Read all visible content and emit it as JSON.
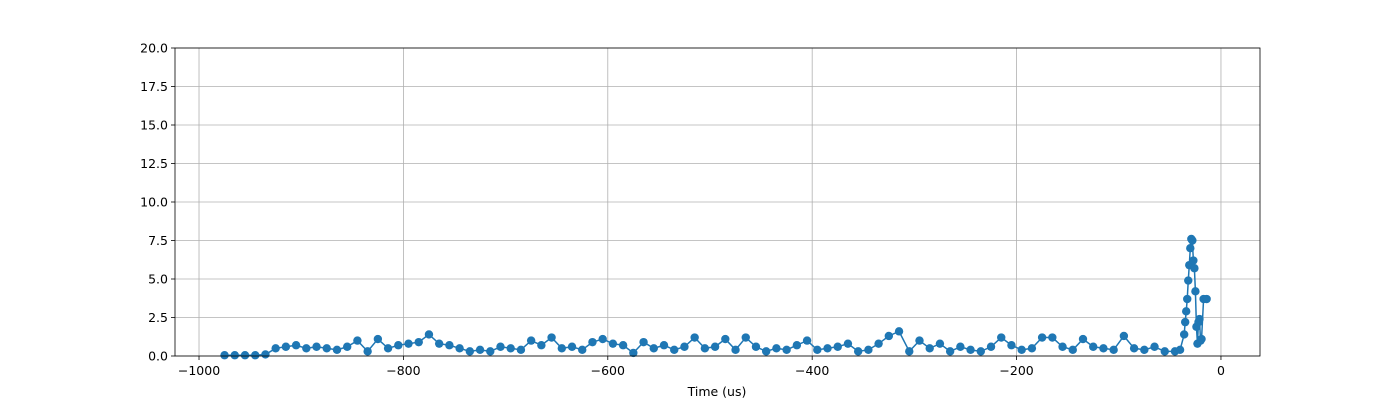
{
  "chart_data": {
    "type": "line",
    "xlabel": "Time (us)",
    "x": [
      -975,
      -965,
      -955,
      -945,
      -935,
      -925,
      -915,
      -905,
      -895,
      -885,
      -875,
      -865,
      -855,
      -845,
      -835,
      -825,
      -815,
      -805,
      -795,
      -785,
      -775,
      -765,
      -755,
      -745,
      -735,
      -725,
      -715,
      -705,
      -695,
      -685,
      -675,
      -665,
      -655,
      -645,
      -635,
      -625,
      -615,
      -605,
      -595,
      -585,
      -575,
      -565,
      -555,
      -545,
      -535,
      -525,
      -515,
      -505,
      -495,
      -485,
      -475,
      -465,
      -455,
      -445,
      -435,
      -425,
      -415,
      -405,
      -395,
      -385,
      -375,
      -365,
      -355,
      -345,
      -335,
      -325,
      -315,
      -305,
      -295,
      -285,
      -275,
      -265,
      -255,
      -245,
      -235,
      -225,
      -215,
      -205,
      -195,
      -185,
      -175,
      -165,
      -155,
      -145,
      -135,
      -125,
      -115,
      -105,
      -95,
      -85,
      -75,
      -65,
      -55,
      -45,
      -40,
      -36,
      -35,
      -34,
      -33,
      -32,
      -31,
      -30,
      -29,
      -28,
      -27,
      -26,
      -25,
      -24,
      -23,
      -22,
      -21,
      -20,
      -19,
      -17,
      -14
    ],
    "series": [
      {
        "color": "#1f77b4",
        "values": [
          0.05,
          0.05,
          0.05,
          0.05,
          0.1,
          0.5,
          0.6,
          0.7,
          0.5,
          0.6,
          0.5,
          0.4,
          0.6,
          1.0,
          0.3,
          1.1,
          0.5,
          0.7,
          0.8,
          0.9,
          1.4,
          0.8,
          0.7,
          0.5,
          0.3,
          0.4,
          0.3,
          0.6,
          0.5,
          0.4,
          1.0,
          0.7,
          1.2,
          0.5,
          0.6,
          0.4,
          0.9,
          1.1,
          0.8,
          0.7,
          0.2,
          0.9,
          0.5,
          0.7,
          0.4,
          0.6,
          1.2,
          0.5,
          0.6,
          1.1,
          0.4,
          1.2,
          0.6,
          0.3,
          0.5,
          0.4,
          0.7,
          1.0,
          0.4,
          0.5,
          0.6,
          0.8,
          0.3,
          0.4,
          0.8,
          1.3,
          1.6,
          0.3,
          1.0,
          0.5,
          0.8,
          0.3,
          0.6,
          0.4,
          0.3,
          0.6,
          1.2,
          0.7,
          0.4,
          0.5,
          1.2,
          1.2,
          0.6,
          0.4,
          1.1,
          0.6,
          0.5,
          0.4,
          1.3,
          0.5,
          0.4,
          0.6,
          0.3,
          0.3,
          0.4,
          1.4,
          2.2,
          2.9,
          3.7,
          4.9,
          5.9,
          7.0,
          7.6,
          7.5,
          6.2,
          5.7,
          4.2,
          1.9,
          0.8,
          2.2,
          2.4,
          1.0,
          1.1,
          3.7,
          3.7
        ]
      }
    ],
    "xlim": [
      -1023.5,
      38.2
    ],
    "xticks": [
      {
        "value": -1000,
        "label": "−1000"
      },
      {
        "value": -800,
        "label": "−800"
      },
      {
        "value": -600,
        "label": "−600"
      },
      {
        "value": -400,
        "label": "−400"
      },
      {
        "value": -200,
        "label": "−200"
      },
      0
    ],
    "ylim": [
      0,
      20
    ],
    "yticks": [
      {
        "value": 0,
        "label": "0.0"
      },
      {
        "value": 2.5,
        "label": "2.5"
      },
      {
        "value": 5,
        "label": "5.0"
      },
      {
        "value": 7.5,
        "label": "7.5"
      },
      {
        "value": 10,
        "label": "10.0"
      },
      {
        "value": 12.5,
        "label": "12.5"
      },
      {
        "value": 15,
        "label": "15.0"
      },
      {
        "value": 17.5,
        "label": "17.5"
      },
      {
        "value": 20,
        "label": "20.0"
      }
    ],
    "grid": true
  }
}
